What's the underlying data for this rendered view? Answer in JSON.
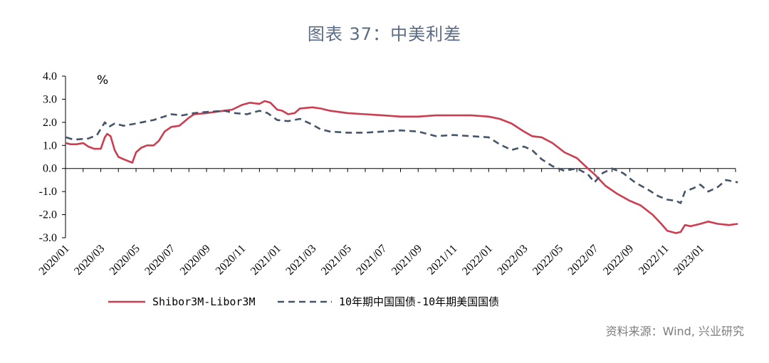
{
  "title": "图表 37：中美利差",
  "source": "资料来源：Wind, 兴业研究",
  "chart_data": {
    "type": "line",
    "unit_label": "%",
    "ylim": [
      -3.0,
      4.0
    ],
    "yticks": [
      "4.0",
      "3.0",
      "2.0",
      "1.0",
      "0.0",
      "-1.0",
      "-2.0",
      "-3.0"
    ],
    "xlim": [
      "2020-01",
      "2023-03"
    ],
    "xticks": [
      "2020/01",
      "2020/03",
      "2020/05",
      "2020/07",
      "2020/09",
      "2020/11",
      "2021/01",
      "2021/03",
      "2021/05",
      "2021/07",
      "2021/09",
      "2021/11",
      "2022/01",
      "2022/03",
      "2022/05",
      "2022/07",
      "2022/09",
      "2022/11",
      "2023/01"
    ],
    "grid": false,
    "legend_position": "bottom",
    "series": [
      {
        "name": "Shibor3M-Libor3M",
        "color": "#cc3d50",
        "style": "solid",
        "points": [
          [
            "2020-01-02",
            1.1
          ],
          [
            "2020-01-10",
            1.05
          ],
          [
            "2020-01-20",
            1.05
          ],
          [
            "2020-02-01",
            1.1
          ],
          [
            "2020-02-10",
            0.95
          ],
          [
            "2020-02-20",
            0.85
          ],
          [
            "2020-03-01",
            0.85
          ],
          [
            "2020-03-08",
            1.35
          ],
          [
            "2020-03-12",
            1.5
          ],
          [
            "2020-03-18",
            1.4
          ],
          [
            "2020-03-25",
            0.8
          ],
          [
            "2020-04-01",
            0.5
          ],
          [
            "2020-04-10",
            0.4
          ],
          [
            "2020-04-20",
            0.3
          ],
          [
            "2020-04-25",
            0.25
          ],
          [
            "2020-05-01",
            0.7
          ],
          [
            "2020-05-10",
            0.9
          ],
          [
            "2020-05-20",
            1.0
          ],
          [
            "2020-06-01",
            1.0
          ],
          [
            "2020-06-10",
            1.2
          ],
          [
            "2020-06-20",
            1.6
          ],
          [
            "2020-07-01",
            1.8
          ],
          [
            "2020-07-15",
            1.85
          ],
          [
            "2020-08-01",
            2.2
          ],
          [
            "2020-08-10",
            2.35
          ],
          [
            "2020-09-01",
            2.4
          ],
          [
            "2020-09-15",
            2.45
          ],
          [
            "2020-10-01",
            2.5
          ],
          [
            "2020-10-15",
            2.55
          ],
          [
            "2020-11-01",
            2.75
          ],
          [
            "2020-11-15",
            2.85
          ],
          [
            "2020-12-01",
            2.8
          ],
          [
            "2020-12-10",
            2.92
          ],
          [
            "2020-12-20",
            2.85
          ],
          [
            "2021-01-01",
            2.55
          ],
          [
            "2021-01-10",
            2.5
          ],
          [
            "2021-01-20",
            2.35
          ],
          [
            "2021-02-01",
            2.4
          ],
          [
            "2021-02-10",
            2.6
          ],
          [
            "2021-03-01",
            2.65
          ],
          [
            "2021-03-15",
            2.6
          ],
          [
            "2021-04-01",
            2.5
          ],
          [
            "2021-05-01",
            2.4
          ],
          [
            "2021-06-01",
            2.35
          ],
          [
            "2021-07-01",
            2.3
          ],
          [
            "2021-08-01",
            2.25
          ],
          [
            "2021-09-01",
            2.25
          ],
          [
            "2021-10-01",
            2.3
          ],
          [
            "2021-11-01",
            2.3
          ],
          [
            "2021-12-01",
            2.3
          ],
          [
            "2022-01-01",
            2.25
          ],
          [
            "2022-01-20",
            2.15
          ],
          [
            "2022-02-10",
            1.95
          ],
          [
            "2022-03-01",
            1.6
          ],
          [
            "2022-03-15",
            1.4
          ],
          [
            "2022-04-01",
            1.35
          ],
          [
            "2022-04-20",
            1.1
          ],
          [
            "2022-05-10",
            0.7
          ],
          [
            "2022-06-01",
            0.45
          ],
          [
            "2022-06-20",
            0.0
          ],
          [
            "2022-07-01",
            -0.25
          ],
          [
            "2022-07-20",
            -0.75
          ],
          [
            "2022-08-10",
            -1.1
          ],
          [
            "2022-09-01",
            -1.4
          ],
          [
            "2022-09-20",
            -1.6
          ],
          [
            "2022-10-10",
            -2.0
          ],
          [
            "2022-10-25",
            -2.4
          ],
          [
            "2022-11-05",
            -2.7
          ],
          [
            "2022-11-20",
            -2.8
          ],
          [
            "2022-11-28",
            -2.75
          ],
          [
            "2022-12-05",
            -2.45
          ],
          [
            "2022-12-15",
            -2.5
          ],
          [
            "2023-01-01",
            -2.4
          ],
          [
            "2023-01-15",
            -2.3
          ],
          [
            "2023-02-01",
            -2.4
          ],
          [
            "2023-02-20",
            -2.45
          ],
          [
            "2023-03-05",
            -2.4
          ]
        ]
      },
      {
        "name": "10年期中国国债-10年期美国国债",
        "color": "#44546a",
        "style": "dashed",
        "points": [
          [
            "2020-01-02",
            1.35
          ],
          [
            "2020-01-15",
            1.25
          ],
          [
            "2020-02-10",
            1.3
          ],
          [
            "2020-02-25",
            1.45
          ],
          [
            "2020-03-08",
            2.0
          ],
          [
            "2020-03-15",
            1.8
          ],
          [
            "2020-03-25",
            1.95
          ],
          [
            "2020-04-10",
            1.85
          ],
          [
            "2020-05-01",
            1.95
          ],
          [
            "2020-06-01",
            2.1
          ],
          [
            "2020-07-01",
            2.35
          ],
          [
            "2020-07-20",
            2.3
          ],
          [
            "2020-08-10",
            2.4
          ],
          [
            "2020-09-01",
            2.45
          ],
          [
            "2020-10-01",
            2.5
          ],
          [
            "2020-10-20",
            2.4
          ],
          [
            "2020-11-10",
            2.35
          ],
          [
            "2020-12-01",
            2.5
          ],
          [
            "2020-12-15",
            2.4
          ],
          [
            "2021-01-01",
            2.1
          ],
          [
            "2021-01-20",
            2.05
          ],
          [
            "2021-02-10",
            2.15
          ],
          [
            "2021-03-01",
            1.9
          ],
          [
            "2021-03-15",
            1.7
          ],
          [
            "2021-04-01",
            1.6
          ],
          [
            "2021-05-01",
            1.55
          ],
          [
            "2021-06-01",
            1.55
          ],
          [
            "2021-07-01",
            1.6
          ],
          [
            "2021-08-01",
            1.65
          ],
          [
            "2021-09-01",
            1.6
          ],
          [
            "2021-10-01",
            1.4
          ],
          [
            "2021-11-01",
            1.45
          ],
          [
            "2021-12-01",
            1.4
          ],
          [
            "2022-01-01",
            1.35
          ],
          [
            "2022-01-20",
            1.05
          ],
          [
            "2022-02-10",
            0.8
          ],
          [
            "2022-03-01",
            0.95
          ],
          [
            "2022-03-15",
            0.8
          ],
          [
            "2022-04-01",
            0.4
          ],
          [
            "2022-04-20",
            0.1
          ],
          [
            "2022-05-10",
            -0.1
          ],
          [
            "2022-06-01",
            0.0
          ],
          [
            "2022-06-20",
            -0.25
          ],
          [
            "2022-07-01",
            -0.6
          ],
          [
            "2022-07-15",
            -0.2
          ],
          [
            "2022-08-01",
            0.0
          ],
          [
            "2022-08-20",
            -0.2
          ],
          [
            "2022-09-10",
            -0.6
          ],
          [
            "2022-10-01",
            -0.9
          ],
          [
            "2022-10-20",
            -1.2
          ],
          [
            "2022-11-05",
            -1.35
          ],
          [
            "2022-11-20",
            -1.4
          ],
          [
            "2022-11-28",
            -1.5
          ],
          [
            "2022-12-05",
            -1.0
          ],
          [
            "2022-12-20",
            -0.85
          ],
          [
            "2023-01-01",
            -0.7
          ],
          [
            "2023-01-15",
            -1.0
          ],
          [
            "2023-02-01",
            -0.8
          ],
          [
            "2023-02-15",
            -0.5
          ],
          [
            "2023-03-05",
            -0.6
          ]
        ]
      }
    ]
  }
}
